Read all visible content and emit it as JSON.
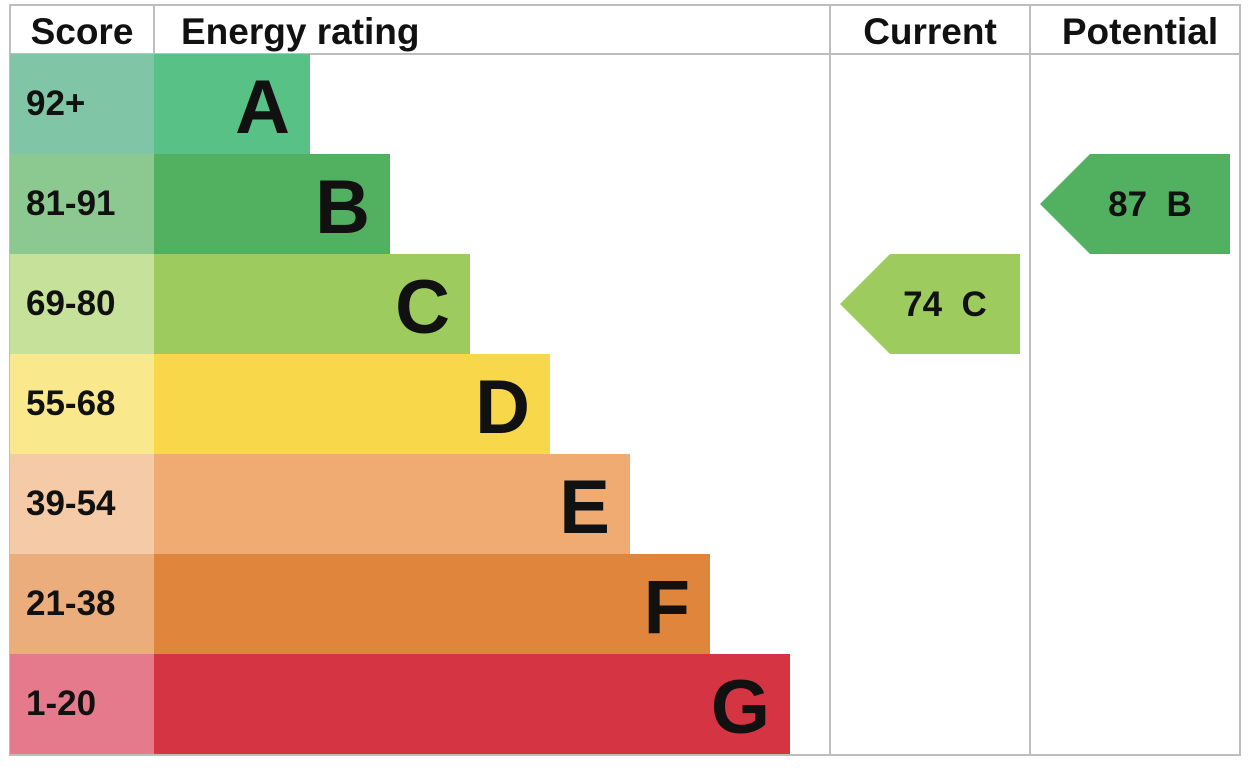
{
  "chart_data": {
    "type": "bar",
    "headers": {
      "score": "Score",
      "rating": "Energy rating",
      "current": "Current",
      "potential": "Potential"
    },
    "bands": [
      {
        "score": "92+",
        "letter": "A",
        "color": "#58c185",
        "score_color": "#80c6a6"
      },
      {
        "score": "81-91",
        "letter": "B",
        "color": "#52b061",
        "score_color": "#8cc990"
      },
      {
        "score": "69-80",
        "letter": "C",
        "color": "#9dcb5d",
        "score_color": "#c5e19a"
      },
      {
        "score": "55-68",
        "letter": "D",
        "color": "#f8d74a",
        "score_color": "#f9e88c"
      },
      {
        "score": "39-54",
        "letter": "E",
        "color": "#f0ab72",
        "score_color": "#f4cba6"
      },
      {
        "score": "21-38",
        "letter": "F",
        "color": "#e0853c",
        "score_color": "#ebad7b"
      },
      {
        "score": "1-20",
        "letter": "G",
        "color": "#d53442",
        "score_color": "#e47a8b"
      }
    ],
    "current": {
      "value": 74,
      "letter": "C",
      "label": "74  C",
      "color": "#9dcb5d"
    },
    "potential": {
      "value": 87,
      "letter": "B",
      "label": "87  B",
      "color": "#52b061"
    }
  }
}
